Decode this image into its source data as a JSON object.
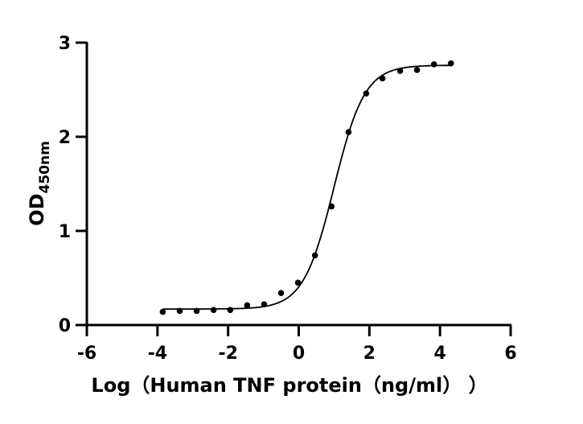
{
  "chart_data": {
    "type": "scatter",
    "title": "",
    "xlabel": "Log（Human TNF protein（ng/ml）  ）",
    "ylabel": "OD",
    "ylabel_subscript": "450nm",
    "xlim": [
      -6,
      6
    ],
    "ylim": [
      0,
      3
    ],
    "xticks": [
      "-6",
      "-4",
      "-2",
      "0",
      "2",
      "4",
      "6"
    ],
    "yticks": [
      "0",
      "1",
      "2",
      "3"
    ],
    "grid": false,
    "colors": {
      "points": "#000000",
      "curve": "#000000",
      "axes": "#000000"
    },
    "series": [
      {
        "type": "scatter",
        "x": [
          -3.85,
          -3.37,
          -2.89,
          -2.41,
          -1.94,
          -1.46,
          -0.98,
          -0.5,
          -0.02,
          0.46,
          0.93,
          1.41,
          1.91,
          2.37,
          2.87,
          3.35,
          3.83,
          4.31
        ],
        "y": [
          0.14,
          0.15,
          0.15,
          0.16,
          0.16,
          0.21,
          0.22,
          0.34,
          0.45,
          0.74,
          1.26,
          2.05,
          2.46,
          2.62,
          2.7,
          2.71,
          2.77,
          2.78
        ]
      }
    ],
    "fit": {
      "type": "4PL",
      "bottom": 0.17,
      "top": 2.76,
      "logEC50": 1.0,
      "hill": 1.0,
      "x_range": [
        -3.85,
        4.31
      ]
    }
  }
}
